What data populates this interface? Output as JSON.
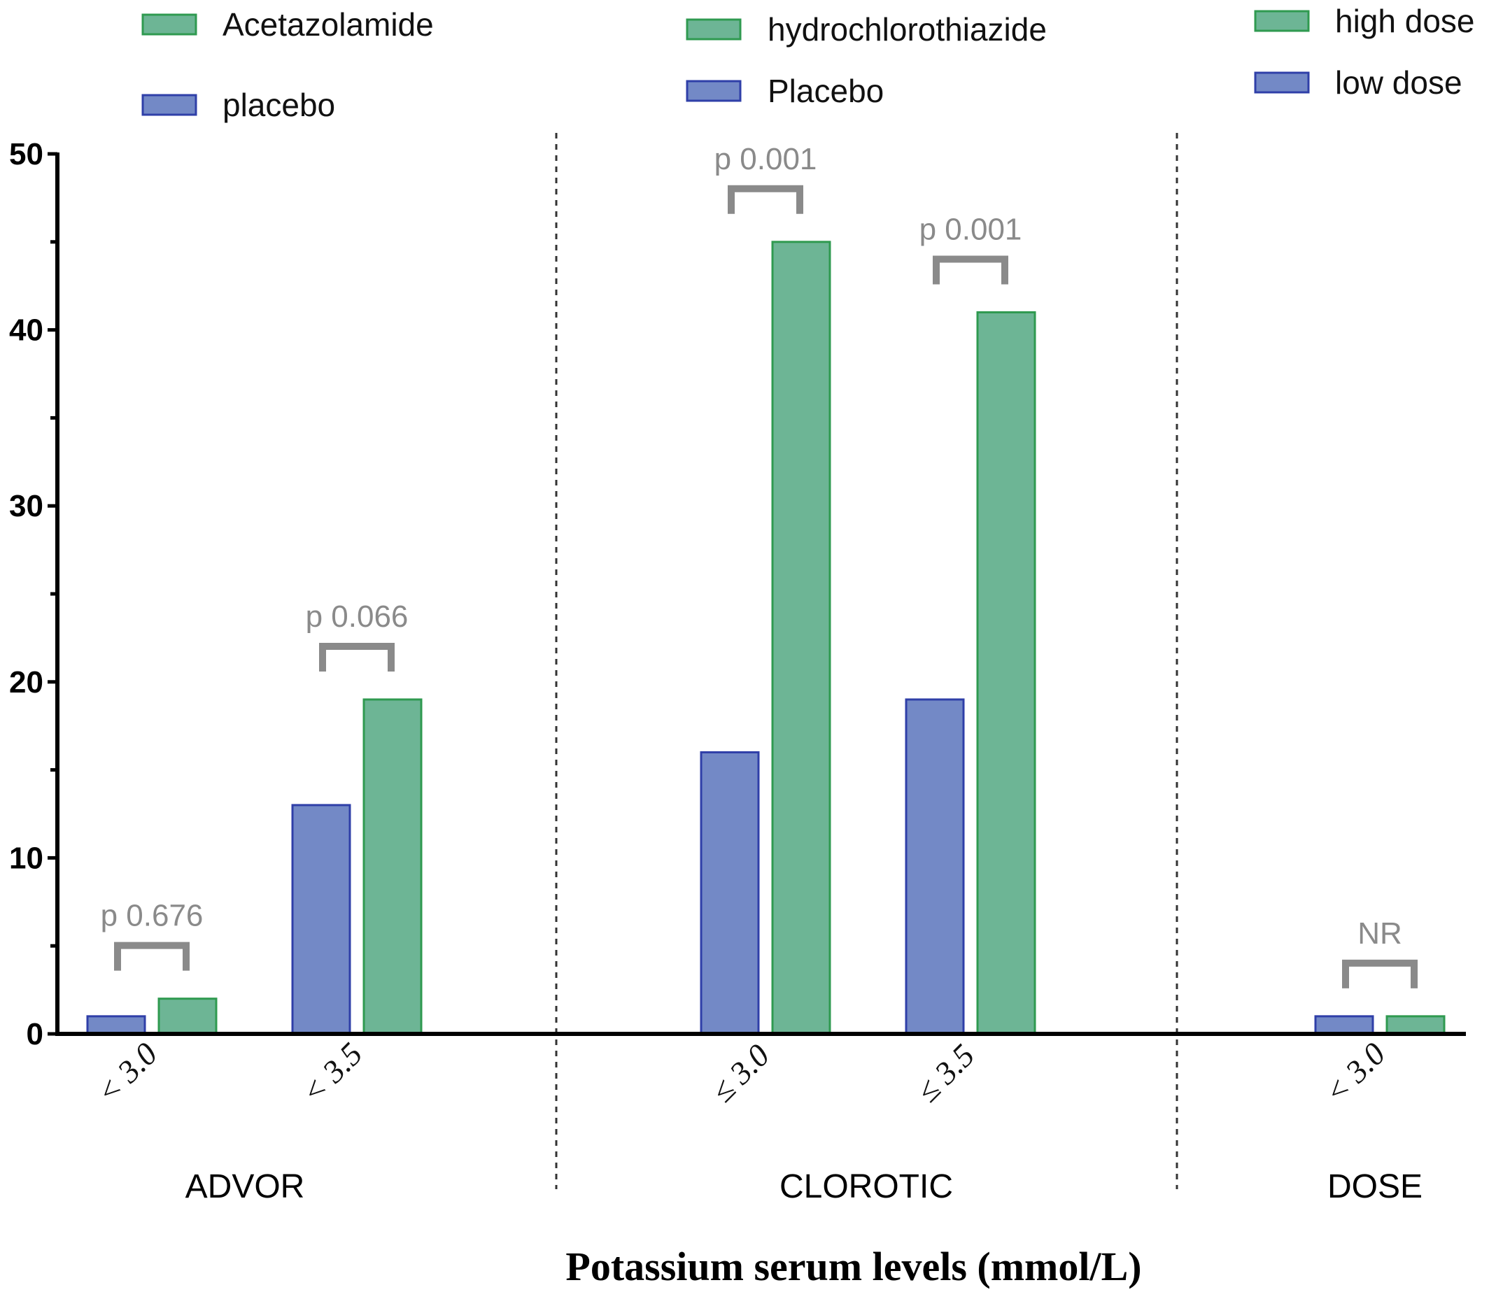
{
  "chart_data": {
    "type": "bar",
    "title": "",
    "xlabel": "Potassium serum levels (mmol/L)",
    "ylabel": "",
    "ylim": [
      0,
      50
    ],
    "yticks": [
      0,
      10,
      20,
      30,
      40,
      50
    ],
    "grid": false,
    "colors": {
      "blue": "#7389c6",
      "blue_edge": "#2f3fa8",
      "green": "#6db595",
      "green_edge": "#2f9a50",
      "bracket": "#8a8a8a"
    },
    "groups": [
      {
        "name": "ADVOR",
        "legend": [
          {
            "label": "Acetazolamide",
            "color": "green"
          },
          {
            "label": "placebo",
            "color": "blue"
          }
        ],
        "categories": [
          {
            "label": "< 3.0",
            "values": [
              1,
              2
            ],
            "colors": [
              "blue",
              "green"
            ],
            "pvalue": "p 0.676"
          },
          {
            "label": "< 3.5",
            "values": [
              13,
              19
            ],
            "colors": [
              "blue",
              "green"
            ],
            "pvalue": "p 0.066"
          }
        ]
      },
      {
        "name": "CLOROTIC",
        "legend": [
          {
            "label": "hydrochlorothiazide",
            "color": "green"
          },
          {
            "label": "Placebo",
            "color": "blue"
          }
        ],
        "categories": [
          {
            "label": "≤ 3.0",
            "values": [
              16,
              45
            ],
            "colors": [
              "blue",
              "green"
            ],
            "pvalue": "p 0.001"
          },
          {
            "label": "≤ 3.5",
            "values": [
              19,
              41
            ],
            "colors": [
              "blue",
              "green"
            ],
            "pvalue": "p 0.001"
          }
        ]
      },
      {
        "name": "DOSE",
        "legend": [
          {
            "label": "high dose",
            "color": "green"
          },
          {
            "label": "low dose",
            "color": "blue"
          }
        ],
        "categories": [
          {
            "label": "< 3.0",
            "values": [
              1,
              1
            ],
            "colors": [
              "blue",
              "green"
            ],
            "pvalue": "NR"
          }
        ]
      }
    ]
  }
}
